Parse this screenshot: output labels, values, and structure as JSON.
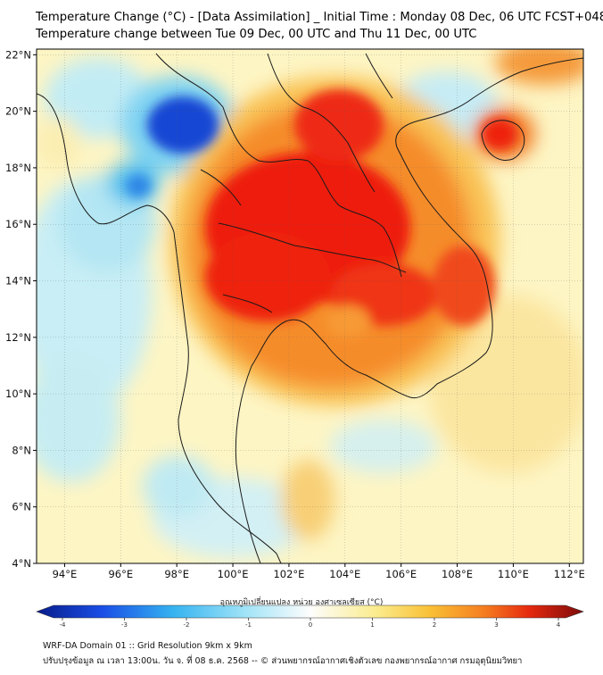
{
  "header": {
    "title_line1": "Temperature Change (°C) - [Data Assimilation] _ Initial Time : Monday 08 Dec, 06 UTC FCST+048",
    "title_line2": "Temperature change between Tue 09 Dec, 00 UTC and Thu 11 Dec, 00 UTC"
  },
  "map": {
    "lat_range": [
      4,
      22.2
    ],
    "lon_range": [
      93,
      112.5
    ],
    "lat_ticks": [
      "22°N",
      "20°N",
      "18°N",
      "16°N",
      "14°N",
      "12°N",
      "10°N",
      "8°N",
      "6°N",
      "4°N"
    ],
    "lon_ticks": [
      "94°E",
      "96°E",
      "98°E",
      "100°E",
      "102°E",
      "104°E",
      "106°E",
      "108°E",
      "110°E",
      "112°E"
    ]
  },
  "colorbar": {
    "label": "อุณหภูมิเปลี่ยนแปลง หน่วย องศาเซลเซียส (°C)",
    "min": -4,
    "max": 4,
    "ticks": [
      "-4",
      "-3",
      "-2",
      "-1",
      "0",
      "1",
      "2",
      "3",
      "4"
    ]
  },
  "footer": {
    "line1": "WRF-DA Domain 01 :: Grid Resolution 9km x 9km",
    "line2": "ปรับปรุงข้อมูล ณ เวลา 13:00น. วัน จ. ที่ 08 ธ.ค. 2568 -- © ส่วนพยากรณ์อากาศเชิงตัวเลข กองพยากรณ์อากาศ กรมอุตุนิยมวิทยา"
  },
  "colors": {
    "cold_strong": "#0a2fc8",
    "cold": "#4fd0f5",
    "neutral": "#fdf7c8",
    "warm": "#f79628",
    "hot": "#ee1c0c"
  }
}
